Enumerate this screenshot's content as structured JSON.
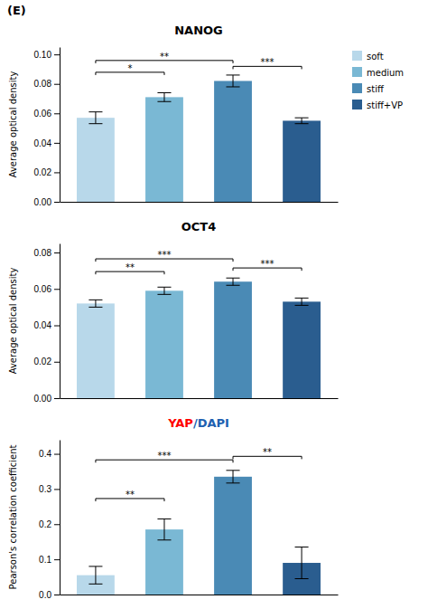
{
  "panel_label": "(E)",
  "chart_data": [
    {
      "type": "bar",
      "title": "NANOG",
      "ylabel": "Average optical density",
      "categories": [
        "soft",
        "medium",
        "stiff",
        "stiff+VP"
      ],
      "values": [
        0.057,
        0.071,
        0.082,
        0.055
      ],
      "errors": [
        0.004,
        0.003,
        0.004,
        0.002
      ],
      "colors": [
        "#b8d8ea",
        "#7ab8d4",
        "#4a8ab5",
        "#2a5d8f"
      ],
      "ylim": [
        0,
        0.105
      ],
      "yticks": [
        {
          "value": 0.0,
          "label": "0.00"
        },
        0.02,
        0.04,
        0.06,
        0.08,
        {
          "value": 0.1,
          "label": "0.10"
        }
      ],
      "annotations": [
        {
          "x1": 0,
          "x2": 1,
          "y": 0.086,
          "label": "*"
        },
        {
          "x1": 0,
          "x2": 2,
          "y": 0.094,
          "label": "**"
        },
        {
          "x1": 2,
          "x2": 3,
          "y": 0.09,
          "label": "***"
        }
      ],
      "tick_labels": "y",
      "grid": false,
      "legend": "right"
    },
    {
      "type": "bar",
      "title": "OCT4",
      "ylabel": "Average optical density",
      "categories": [
        "soft",
        "medium",
        "stiff",
        "stiff+VP"
      ],
      "values": [
        0.052,
        0.059,
        0.064,
        0.053
      ],
      "errors": [
        0.002,
        0.002,
        0.002,
        0.002
      ],
      "colors": [
        "#b8d8ea",
        "#7ab8d4",
        "#4a8ab5",
        "#2a5d8f"
      ],
      "ylim": [
        0,
        0.085
      ],
      "yticks": [
        {
          "value": 0.0,
          "label": "0.00"
        },
        0.02,
        0.04,
        0.06,
        0.08
      ],
      "annotations": [
        {
          "x1": 0,
          "x2": 1,
          "y": 0.068,
          "label": "**"
        },
        {
          "x1": 0,
          "x2": 2,
          "y": 0.075,
          "label": "***"
        },
        {
          "x1": 2,
          "x2": 3,
          "y": 0.07,
          "label": "***"
        }
      ],
      "tick_labels": "y",
      "grid": false
    },
    {
      "type": "bar",
      "title_parts": [
        {
          "text": "YAP",
          "color": "red"
        },
        {
          "text": "/DAPI",
          "color": "#2060b0"
        }
      ],
      "ylabel": "Pearson's correlation coefficient",
      "categories": [
        "soft",
        "medium",
        "stiff",
        "stiff+VP"
      ],
      "values": [
        0.055,
        0.185,
        0.335,
        0.09
      ],
      "errors": [
        0.025,
        0.03,
        0.018,
        0.045
      ],
      "colors": [
        "#b8d8ea",
        "#7ab8d4",
        "#4a8ab5",
        "#2a5d8f"
      ],
      "ylim": [
        0,
        0.44
      ],
      "yticks": [
        {
          "value": 0.0,
          "label": "0.0"
        },
        0.1,
        0.2,
        0.3,
        0.4
      ],
      "annotations": [
        {
          "x1": 0,
          "x2": 1,
          "y": 0.265,
          "label": "**"
        },
        {
          "x1": 0,
          "x2": 2,
          "y": 0.375,
          "label": "***"
        },
        {
          "x1": 2,
          "x2": 3,
          "y": 0.385,
          "label": "**"
        }
      ],
      "tick_labels": "y",
      "grid": false
    }
  ]
}
